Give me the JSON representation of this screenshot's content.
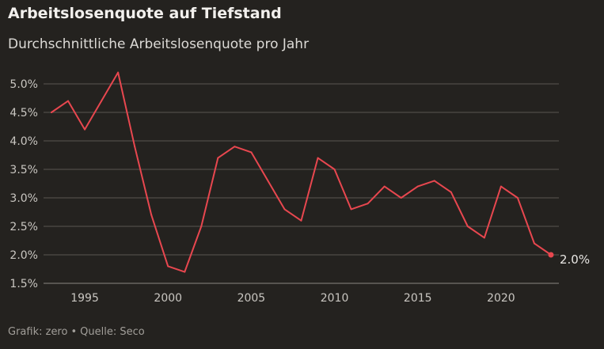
{
  "title": "Arbeitslosenquote auf Tiefstand",
  "subtitle": "Durchschnittliche Arbeitslosenquote pro Jahr",
  "footer": {
    "credit": "Grafik: zero",
    "separator": "•",
    "source": "Quelle: Seco"
  },
  "colors": {
    "background": "#24221f",
    "line": "#e8474f",
    "grid": "#5a5752"
  },
  "chart_data": {
    "type": "line",
    "title": "Arbeitslosenquote auf Tiefstand",
    "subtitle": "Durchschnittliche Arbeitslosenquote pro Jahr",
    "xlabel": "",
    "ylabel": "",
    "ylim": [
      1.5,
      5.0
    ],
    "xlim": [
      1993,
      2023
    ],
    "grid": true,
    "y_ticks": [
      1.5,
      2.0,
      2.5,
      3.0,
      3.5,
      4.0,
      4.5,
      5.0
    ],
    "y_tick_labels": [
      "1.5%",
      "2.0%",
      "2.5%",
      "3.0%",
      "3.5%",
      "4.0%",
      "4.5%",
      "5.0%"
    ],
    "x_ticks": [
      1995,
      2000,
      2005,
      2010,
      2015,
      2020
    ],
    "x_tick_labels": [
      "1995",
      "2000",
      "2005",
      "2010",
      "2015",
      "2020"
    ],
    "end_label": "2.0%",
    "series": [
      {
        "x": [
          1993,
          1994,
          1995,
          1996,
          1997,
          1998,
          1999,
          2000,
          2001,
          2002,
          2003,
          2004,
          2005,
          2006,
          2007,
          2008,
          2009,
          2010,
          2011,
          2012,
          2013,
          2014,
          2015,
          2016,
          2017,
          2018,
          2019,
          2020,
          2021,
          2022,
          2023
        ],
        "values": [
          4.5,
          4.7,
          4.2,
          4.7,
          5.2,
          3.9,
          2.7,
          1.8,
          1.7,
          2.5,
          3.7,
          3.9,
          3.8,
          3.3,
          2.8,
          2.6,
          3.7,
          3.5,
          2.8,
          2.9,
          3.2,
          3.0,
          3.2,
          3.3,
          3.1,
          2.5,
          2.3,
          3.2,
          3.0,
          2.2,
          2.0
        ]
      }
    ]
  }
}
